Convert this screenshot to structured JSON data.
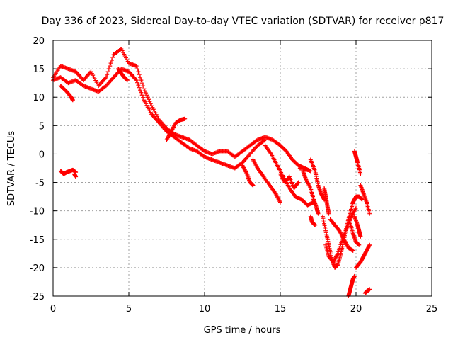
{
  "chart_data": {
    "type": "scatter",
    "title": "Day 336 of 2023, Sidereal Day-to-day VTEC variation (SDTVAR) for receiver p817",
    "xlabel": "GPS time / hours",
    "ylabel": "SDTVAR / TECUs",
    "xlim": [
      0,
      25
    ],
    "ylim": [
      -25,
      20
    ],
    "xticks": [
      0,
      5,
      10,
      15,
      20,
      25
    ],
    "yticks": [
      -25,
      -20,
      -15,
      -10,
      -5,
      0,
      5,
      10,
      15,
      20
    ],
    "grid": true,
    "marker": "+",
    "color": "#ff0000",
    "series": [
      {
        "name": "trace-main-upper",
        "x": [
          0.0,
          0.5,
          1.0,
          1.5,
          2.0,
          2.5,
          3.0,
          3.5,
          4.0,
          4.5,
          5.0,
          5.5,
          6.0,
          6.5,
          7.0,
          7.5,
          8.0,
          8.5,
          9.0,
          9.5,
          10.0,
          10.5,
          11.0,
          11.5,
          12.0,
          12.5,
          13.0,
          13.5,
          14.0,
          14.5,
          15.0
        ],
        "y": [
          13.5,
          15.5,
          15.0,
          14.5,
          13.0,
          14.5,
          12.0,
          13.5,
          17.5,
          18.5,
          16.0,
          15.5,
          11.5,
          8.5,
          6.0,
          4.5,
          3.5,
          3.0,
          2.5,
          1.5,
          0.5,
          0.0,
          0.5,
          0.5,
          -0.5,
          0.5,
          1.5,
          2.5,
          3.0,
          2.5,
          1.5
        ]
      },
      {
        "name": "trace-main-lower",
        "x": [
          0.0,
          0.5,
          1.0,
          1.5,
          2.0,
          2.5,
          3.0,
          3.5,
          4.0,
          4.5,
          5.0,
          5.5,
          6.0,
          6.5,
          7.0,
          7.5,
          8.0,
          8.5,
          9.0,
          9.5,
          10.0,
          10.5,
          11.0,
          11.5,
          12.0,
          12.5,
          13.0,
          13.5,
          14.0
        ],
        "y": [
          13.0,
          13.5,
          12.5,
          13.0,
          12.0,
          11.5,
          11.0,
          12.0,
          13.5,
          15.0,
          14.5,
          13.0,
          9.5,
          7.0,
          5.5,
          4.0,
          3.0,
          2.0,
          1.0,
          0.5,
          -0.5,
          -1.0,
          -1.5,
          -2.0,
          -2.5,
          -1.5,
          0.0,
          1.5,
          2.5
        ]
      },
      {
        "name": "trace-dip-1",
        "x": [
          0.5,
          0.9,
          1.2,
          1.3
        ],
        "y": [
          12.0,
          11.0,
          10.0,
          9.5
        ]
      },
      {
        "name": "trace-dip-2",
        "x": [
          4.3,
          4.5,
          4.7,
          4.9
        ],
        "y": [
          15.0,
          14.2,
          13.5,
          13.0
        ]
      },
      {
        "name": "trace-loop-8",
        "x": [
          7.5,
          7.8,
          8.1,
          8.4,
          8.7
        ],
        "y": [
          2.5,
          4.0,
          5.5,
          6.0,
          6.2
        ]
      },
      {
        "name": "trace-dip-12",
        "x": [
          12.5,
          12.8,
          13.0,
          13.2
        ],
        "y": [
          -2.0,
          -3.5,
          -5.0,
          -5.5
        ]
      },
      {
        "name": "trace-cluster-14",
        "x": [
          14.0,
          14.4,
          14.8,
          15.2,
          15.6,
          16.0,
          16.4,
          16.8,
          17.2
        ],
        "y": [
          1.5,
          0.0,
          -2.0,
          -4.0,
          -6.0,
          -7.5,
          -8.0,
          -9.0,
          -8.5
        ]
      },
      {
        "name": "trace-right-13",
        "x": [
          13.2,
          13.5,
          13.9,
          14.3,
          14.7,
          15.0
        ],
        "y": [
          -1.0,
          -2.5,
          -4.0,
          -5.5,
          -7.0,
          -8.5
        ]
      },
      {
        "name": "trace-wiggle-15",
        "x": [
          15.0,
          15.3,
          15.6,
          15.9,
          16.2
        ],
        "y": [
          -3.5,
          -5.0,
          -4.0,
          -6.0,
          -5.0
        ]
      },
      {
        "name": "trace-arc-15-17",
        "x": [
          15.0,
          15.4,
          15.8,
          16.2,
          16.6,
          17.0
        ],
        "y": [
          1.5,
          0.5,
          -1.0,
          -2.0,
          -2.5,
          -3.0
        ]
      },
      {
        "name": "trace-side-17",
        "x": [
          16.5,
          16.7,
          17.0,
          17.2,
          17.4,
          17.5
        ],
        "y": [
          -3.0,
          -4.5,
          -6.0,
          -8.0,
          -9.5,
          -10.5
        ]
      },
      {
        "name": "trace-17-5",
        "x": [
          17.0,
          17.3,
          17.5,
          17.7,
          17.9
        ],
        "y": [
          -1.0,
          -3.0,
          -5.5,
          -7.0,
          -8.0
        ]
      },
      {
        "name": "trace-spike-17-9",
        "x": [
          17.9,
          18.0,
          18.1,
          18.2
        ],
        "y": [
          -6.0,
          -7.5,
          -9.0,
          -10.5
        ]
      },
      {
        "name": "trace-isolated-17-2",
        "x": [
          17.0,
          17.1,
          17.3
        ],
        "y": [
          -11.0,
          -12.0,
          -12.5
        ]
      },
      {
        "name": "trace-v-18",
        "x": [
          17.8,
          18.0,
          18.2,
          18.4,
          18.6,
          18.8,
          19.0,
          19.2,
          19.4,
          19.6,
          19.8,
          20.0,
          20.2,
          20.4
        ],
        "y": [
          -11.0,
          -13.5,
          -16.0,
          -18.5,
          -20.0,
          -19.5,
          -17.5,
          -15.0,
          -12.5,
          -10.5,
          -8.5,
          -7.5,
          -7.5,
          -8.0
        ]
      },
      {
        "name": "trace-v-18-inner",
        "x": [
          18.0,
          18.2,
          18.5,
          18.8,
          19.1,
          19.4,
          19.7,
          20.0
        ],
        "y": [
          -16.0,
          -18.0,
          -19.0,
          -17.5,
          -15.0,
          -13.0,
          -11.0,
          -9.5
        ]
      },
      {
        "name": "trace-18-5-upper",
        "x": [
          18.3,
          18.6,
          18.9,
          19.2,
          19.5,
          19.8
        ],
        "y": [
          -11.5,
          -12.5,
          -13.5,
          -15.0,
          -16.5,
          -17.0
        ]
      },
      {
        "name": "trace-19-8",
        "x": [
          19.6,
          19.8,
          20.0,
          20.2
        ],
        "y": [
          -12.0,
          -14.0,
          -15.5,
          -16.0
        ]
      },
      {
        "name": "trace-20-1",
        "x": [
          19.9,
          20.1,
          20.2,
          20.3
        ],
        "y": [
          -11.0,
          -12.5,
          -13.5,
          -14.5
        ]
      },
      {
        "name": "trace-20-5",
        "x": [
          20.3,
          20.5,
          20.7,
          20.9
        ],
        "y": [
          -5.5,
          -7.0,
          -8.5,
          -10.5
        ]
      },
      {
        "name": "trace-top-20",
        "x": [
          19.9,
          20.0,
          20.1,
          20.3
        ],
        "y": [
          0.5,
          -0.5,
          -1.5,
          -3.5
        ]
      },
      {
        "name": "trace-right-descent",
        "x": [
          20.0,
          20.3,
          20.5,
          20.7,
          20.9
        ],
        "y": [
          -20.0,
          -19.0,
          -18.0,
          -17.0,
          -16.0
        ]
      },
      {
        "name": "trace-bottom-19-5",
        "x": [
          19.5,
          19.6,
          19.7,
          19.8,
          19.9
        ],
        "y": [
          -25.0,
          -24.0,
          -23.0,
          -22.0,
          -21.5
        ]
      },
      {
        "name": "trace-bottom-20-8",
        "x": [
          20.6,
          20.7,
          20.8,
          20.9
        ],
        "y": [
          -24.5,
          -24.2,
          -24.0,
          -23.8
        ]
      },
      {
        "name": "trace-isolated-1",
        "x": [
          0.5,
          0.7,
          0.9,
          1.1,
          1.3,
          1.5
        ],
        "y": [
          -3.0,
          -3.5,
          -3.2,
          -3.0,
          -2.8,
          -3.2
        ]
      },
      {
        "name": "trace-isolated-1-tail",
        "x": [
          1.4,
          1.5
        ],
        "y": [
          -3.5,
          -4.0
        ]
      },
      {
        "name": "trace-tick-13",
        "x": [
          16.3,
          16.8
        ],
        "y": [
          -2.5,
          -2.8
        ]
      }
    ]
  }
}
